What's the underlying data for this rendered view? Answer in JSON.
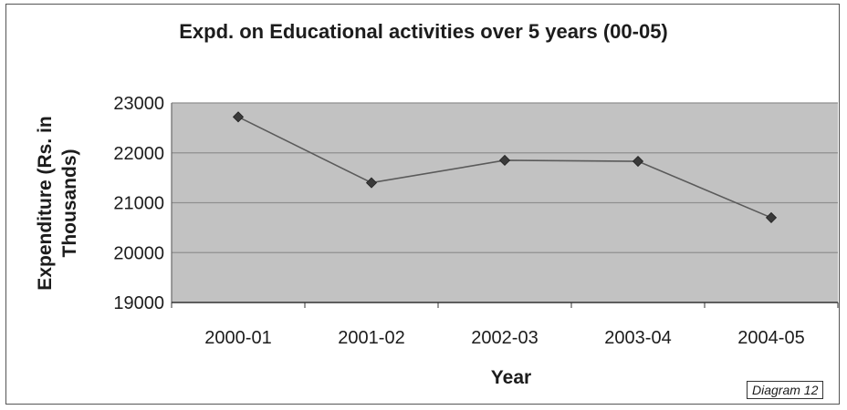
{
  "chart_data": {
    "type": "line",
    "title": "Expd. on Educational activities over 5 years (00-05)",
    "xlabel": "Year",
    "ylabel": "Expenditure (Rs. in Thousands)",
    "categories": [
      "2000-01",
      "2001-02",
      "2002-03",
      "2003-04",
      "2004-05"
    ],
    "series": [
      {
        "values": [
          22720,
          21400,
          21850,
          21830,
          20700
        ]
      }
    ],
    "ylim": [
      19000,
      23000
    ],
    "yticks": [
      "23000",
      "22000",
      "21000",
      "20000",
      "19000"
    ],
    "grid": true,
    "colors": {
      "plot_bg": "#c2c2c2",
      "line": "#5a5a5a",
      "marker": "#3a3a3a",
      "grid": "#8f8f8f"
    }
  },
  "footer": {
    "badge": "Diagram 12"
  }
}
